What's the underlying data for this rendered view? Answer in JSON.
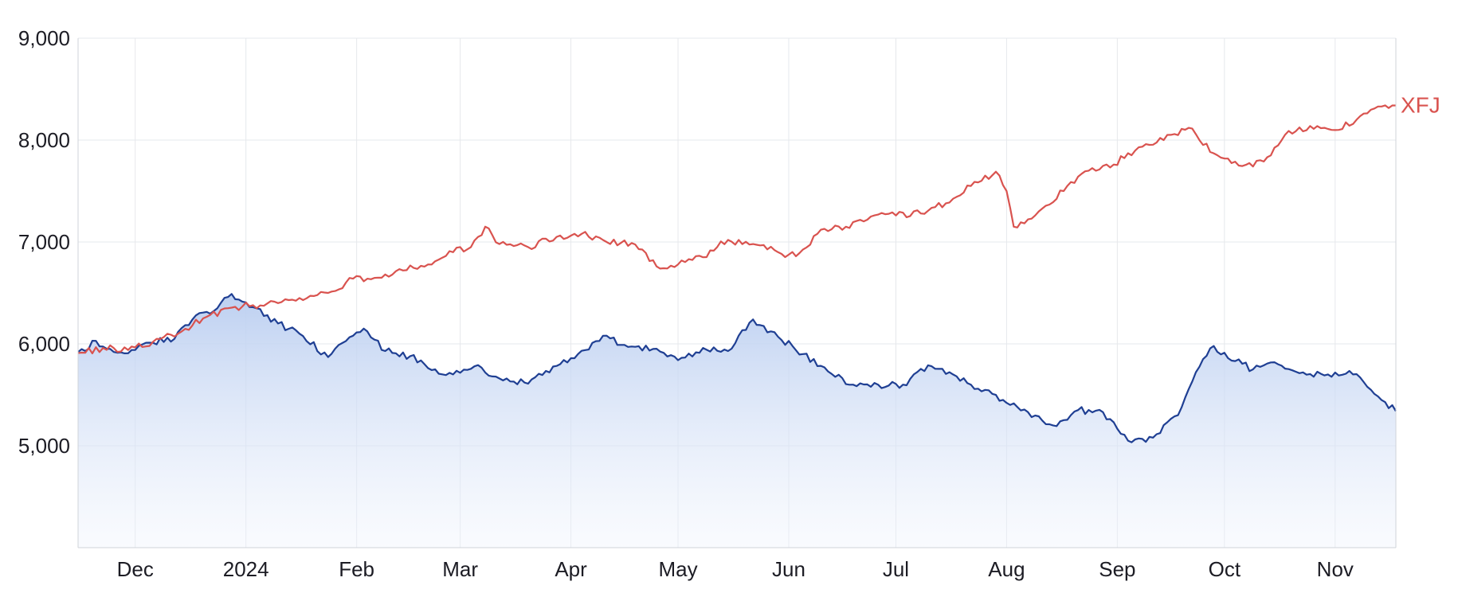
{
  "chart_data": {
    "type": "line",
    "title": "",
    "xlabel": "",
    "ylabel": "",
    "x_tick_labels": [
      "Dec",
      "2024",
      "Feb",
      "Mar",
      "Apr",
      "May",
      "Jun",
      "Jul",
      "Aug",
      "Sep",
      "Oct",
      "Nov"
    ],
    "x_tick_dates": [
      "2023-12-01",
      "2024-01-01",
      "2024-02-01",
      "2024-03-01",
      "2024-04-01",
      "2024-05-01",
      "2024-06-01",
      "2024-07-01",
      "2024-08-01",
      "2024-09-01",
      "2024-10-01",
      "2024-11-01"
    ],
    "xlim": [
      "2023-11-15",
      "2024-11-18"
    ],
    "y_ticks": [
      5000,
      6000,
      7000,
      8000,
      9000
    ],
    "y_tick_labels": [
      "5,000",
      "6,000",
      "7,000",
      "8,000",
      "9,000"
    ],
    "ylim": [
      4000,
      9000
    ],
    "grid": true,
    "series": [
      {
        "name": "XFJ",
        "color": "#d9534f",
        "labeled": true,
        "fill": false,
        "points": [
          [
            "2023-11-15",
            5910
          ],
          [
            "2023-11-22",
            5960
          ],
          [
            "2023-11-29",
            5940
          ],
          [
            "2023-12-06",
            6020
          ],
          [
            "2023-12-13",
            6100
          ],
          [
            "2023-12-20",
            6250
          ],
          [
            "2023-12-27",
            6350
          ],
          [
            "2024-01-03",
            6380
          ],
          [
            "2024-01-10",
            6400
          ],
          [
            "2024-01-17",
            6430
          ],
          [
            "2024-01-24",
            6500
          ],
          [
            "2024-01-31",
            6640
          ],
          [
            "2024-02-07",
            6650
          ],
          [
            "2024-02-14",
            6720
          ],
          [
            "2024-02-21",
            6780
          ],
          [
            "2024-02-28",
            6900
          ],
          [
            "2024-03-04",
            6950
          ],
          [
            "2024-03-08",
            7150
          ],
          [
            "2024-03-12",
            6980
          ],
          [
            "2024-03-20",
            6950
          ],
          [
            "2024-03-28",
            7050
          ],
          [
            "2024-04-04",
            7080
          ],
          [
            "2024-04-11",
            7000
          ],
          [
            "2024-04-18",
            6990
          ],
          [
            "2024-04-25",
            6760
          ],
          [
            "2024-05-01",
            6780
          ],
          [
            "2024-05-08",
            6850
          ],
          [
            "2024-05-15",
            7020
          ],
          [
            "2024-05-22",
            6980
          ],
          [
            "2024-05-29",
            6900
          ],
          [
            "2024-06-03",
            6860
          ],
          [
            "2024-06-10",
            7120
          ],
          [
            "2024-06-17",
            7150
          ],
          [
            "2024-06-24",
            7250
          ],
          [
            "2024-07-01",
            7260
          ],
          [
            "2024-07-08",
            7280
          ],
          [
            "2024-07-15",
            7380
          ],
          [
            "2024-07-22",
            7550
          ],
          [
            "2024-07-29",
            7690
          ],
          [
            "2024-08-01",
            7500
          ],
          [
            "2024-08-03",
            7150
          ],
          [
            "2024-08-10",
            7300
          ],
          [
            "2024-08-17",
            7500
          ],
          [
            "2024-08-24",
            7700
          ],
          [
            "2024-08-31",
            7760
          ],
          [
            "2024-09-07",
            7930
          ],
          [
            "2024-09-14",
            8000
          ],
          [
            "2024-09-21",
            8120
          ],
          [
            "2024-09-28",
            7870
          ],
          [
            "2024-10-05",
            7750
          ],
          [
            "2024-10-12",
            7790
          ],
          [
            "2024-10-19",
            8090
          ],
          [
            "2024-10-26",
            8110
          ],
          [
            "2024-11-02",
            8100
          ],
          [
            "2024-11-09",
            8260
          ],
          [
            "2024-11-14",
            8330
          ],
          [
            "2024-11-18",
            8340
          ]
        ]
      },
      {
        "name": "",
        "color": "#1f3f93",
        "labeled": false,
        "fill": true,
        "points": [
          [
            "2023-11-15",
            5920
          ],
          [
            "2023-11-20",
            6030
          ],
          [
            "2023-11-25",
            5920
          ],
          [
            "2023-12-01",
            5940
          ],
          [
            "2023-12-06",
            6010
          ],
          [
            "2023-12-12",
            6050
          ],
          [
            "2023-12-18",
            6280
          ],
          [
            "2023-12-24",
            6350
          ],
          [
            "2023-12-28",
            6490
          ],
          [
            "2024-01-03",
            6360
          ],
          [
            "2024-01-10",
            6200
          ],
          [
            "2024-01-16",
            6100
          ],
          [
            "2024-01-24",
            5870
          ],
          [
            "2024-01-31",
            6080
          ],
          [
            "2024-02-03",
            6150
          ],
          [
            "2024-02-09",
            5930
          ],
          [
            "2024-02-16",
            5880
          ],
          [
            "2024-02-23",
            5750
          ],
          [
            "2024-02-28",
            5700
          ],
          [
            "2024-03-05",
            5780
          ],
          [
            "2024-03-12",
            5660
          ],
          [
            "2024-03-19",
            5620
          ],
          [
            "2024-03-26",
            5720
          ],
          [
            "2024-04-03",
            5900
          ],
          [
            "2024-04-10",
            6080
          ],
          [
            "2024-04-17",
            5970
          ],
          [
            "2024-04-24",
            5950
          ],
          [
            "2024-05-01",
            5840
          ],
          [
            "2024-05-08",
            5960
          ],
          [
            "2024-05-15",
            5930
          ],
          [
            "2024-05-22",
            6240
          ],
          [
            "2024-05-29",
            6070
          ],
          [
            "2024-06-05",
            5900
          ],
          [
            "2024-06-12",
            5730
          ],
          [
            "2024-06-19",
            5600
          ],
          [
            "2024-06-26",
            5600
          ],
          [
            "2024-07-03",
            5600
          ],
          [
            "2024-07-10",
            5790
          ],
          [
            "2024-07-17",
            5700
          ],
          [
            "2024-07-24",
            5560
          ],
          [
            "2024-07-31",
            5450
          ],
          [
            "2024-08-07",
            5330
          ],
          [
            "2024-08-14",
            5200
          ],
          [
            "2024-08-21",
            5350
          ],
          [
            "2024-08-28",
            5330
          ],
          [
            "2024-09-04",
            5050
          ],
          [
            "2024-09-11",
            5080
          ],
          [
            "2024-09-18",
            5300
          ],
          [
            "2024-09-25",
            5850
          ],
          [
            "2024-09-28",
            5980
          ],
          [
            "2024-10-02",
            5860
          ],
          [
            "2024-10-09",
            5750
          ],
          [
            "2024-10-16",
            5800
          ],
          [
            "2024-10-23",
            5720
          ],
          [
            "2024-10-30",
            5700
          ],
          [
            "2024-11-06",
            5700
          ],
          [
            "2024-11-11",
            5550
          ],
          [
            "2024-11-18",
            5340
          ]
        ]
      }
    ]
  }
}
